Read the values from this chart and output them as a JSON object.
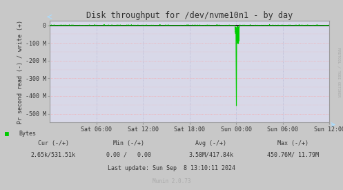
{
  "title": "Disk throughput for /dev/nvme10n1 - by day",
  "ylabel": "Pr second read (-) / write (+)",
  "background_color": "#c8c8c8",
  "plot_bg_color": "#d8d8e8",
  "grid_color_h": "#ff9999",
  "grid_color_v": "#aaaacc",
  "line_color": "#00cc00",
  "border_color": "#999999",
  "zero_line_color": "#000000",
  "ylim": [
    -550000000,
    25000000
  ],
  "yticks": [
    0,
    -100000000,
    -200000000,
    -300000000,
    -400000000,
    -500000000
  ],
  "ytick_labels": [
    "0",
    "-100 M",
    "-200 M",
    "-300 M",
    "-400 M",
    "-500 M"
  ],
  "xtick_positions": [
    6,
    12,
    18,
    24,
    30,
    36
  ],
  "xtick_labels": [
    "Sat 06:00",
    "Sat 12:00",
    "Sat 18:00",
    "Sun 00:00",
    "Sun 06:00",
    "Sun 12:00"
  ],
  "total_hours": 36,
  "legend_label": "Bytes",
  "legend_color": "#00cc00",
  "cur_text": "Cur (-/+)",
  "cur_val": "2.65k/531.51k",
  "min_text": "Min (-/+)",
  "min_val": "0.00 /   0.00",
  "avg_text": "Avg (-/+)",
  "avg_val": "3.58M/417.84k",
  "max_text": "Max (-/+)",
  "max_val": "450.76M/ 11.79M",
  "last_update": "Last update: Sun Sep  8 13:10:11 2024",
  "munin_version": "Munin 2.0.73",
  "rrdtool_text": "RRDTOOL / TOBI OETIKER",
  "title_color": "#333333",
  "label_color": "#333333",
  "footer_color": "#aaaaaa",
  "arrow_color": "#aaddff"
}
